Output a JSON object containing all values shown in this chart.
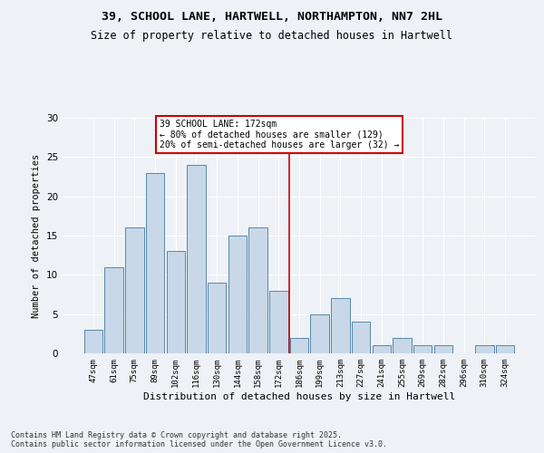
{
  "title": "39, SCHOOL LANE, HARTWELL, NORTHAMPTON, NN7 2HL",
  "subtitle": "Size of property relative to detached houses in Hartwell",
  "xlabel": "Distribution of detached houses by size in Hartwell",
  "ylabel": "Number of detached properties",
  "bar_labels": [
    "47sqm",
    "61sqm",
    "75sqm",
    "89sqm",
    "102sqm",
    "116sqm",
    "130sqm",
    "144sqm",
    "158sqm",
    "172sqm",
    "186sqm",
    "199sqm",
    "213sqm",
    "227sqm",
    "241sqm",
    "255sqm",
    "269sqm",
    "282sqm",
    "296sqm",
    "310sqm",
    "324sqm"
  ],
  "bar_values": [
    3,
    11,
    16,
    23,
    13,
    24,
    9,
    15,
    16,
    8,
    2,
    5,
    7,
    4,
    1,
    2,
    1,
    1,
    0,
    1,
    1
  ],
  "bar_color": "#c8d8e8",
  "bar_edgecolor": "#5588aa",
  "vline_x": 9.5,
  "vline_color": "#cc0000",
  "annotation_text": "39 SCHOOL LANE: 172sqm\n← 80% of detached houses are smaller (129)\n20% of semi-detached houses are larger (32) →",
  "annotation_box_color": "#cc0000",
  "annotation_bg": "white",
  "ylim": [
    0,
    30
  ],
  "yticks": [
    0,
    5,
    10,
    15,
    20,
    25,
    30
  ],
  "background_color": "#eef2f6",
  "grid_color": "white",
  "footer": "Contains HM Land Registry data © Crown copyright and database right 2025.\nContains public sector information licensed under the Open Government Licence v3.0."
}
